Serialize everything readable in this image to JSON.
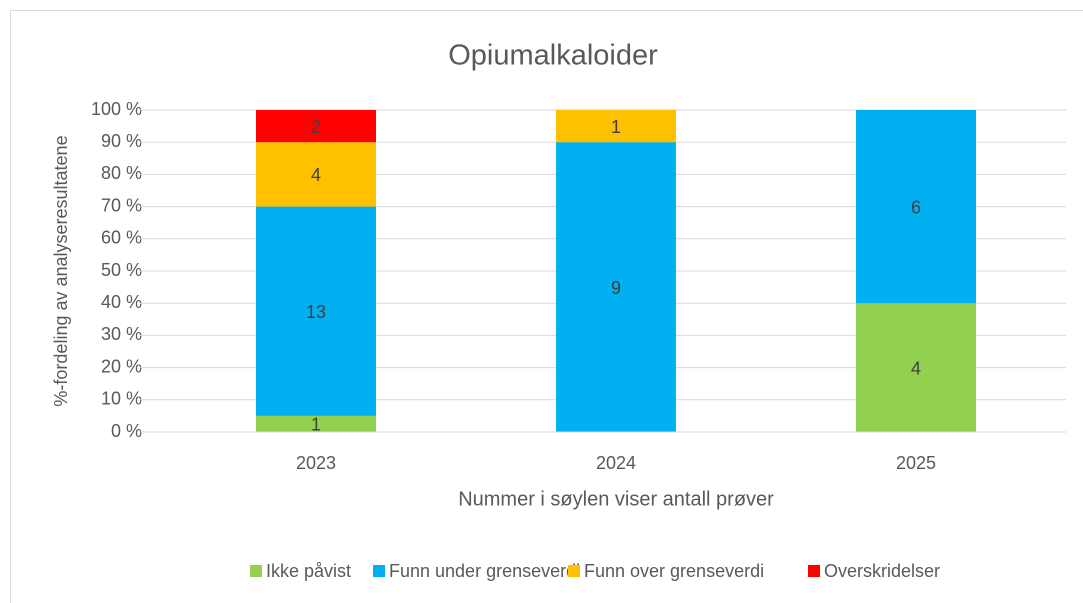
{
  "chart_data": {
    "type": "stacked_bar_percent",
    "title": "Opiumalkaloider",
    "ylabel": "%-fordeling av analyseresultatene",
    "xlabel": "Nummer i søylen viser antall prøver",
    "categories": [
      "2023",
      "2024",
      "2025"
    ],
    "series": [
      {
        "name": "Ikke påvist",
        "color": "#92d050",
        "values": [
          5,
          0,
          40
        ],
        "counts": [
          1,
          null,
          4
        ]
      },
      {
        "name": "Funn under grenseverdi",
        "color": "#00b0f0",
        "values": [
          65,
          90,
          60
        ],
        "counts": [
          13,
          9,
          6
        ]
      },
      {
        "name": "Funn over grenseverdi",
        "color": "#ffc000",
        "values": [
          20,
          10,
          0
        ],
        "counts": [
          4,
          1,
          null
        ]
      },
      {
        "name": "Overskridelser",
        "color": "#ff0000",
        "values": [
          10,
          0,
          0
        ],
        "counts": [
          2,
          null,
          null
        ]
      }
    ],
    "ylim": [
      0,
      100
    ],
    "yticks": [
      {
        "value": 0,
        "label": "0 %"
      },
      {
        "value": 10,
        "label": "10 %"
      },
      {
        "value": 20,
        "label": "20 %"
      },
      {
        "value": 30,
        "label": "30 %"
      },
      {
        "value": 40,
        "label": "40 %"
      },
      {
        "value": 50,
        "label": "50 %"
      },
      {
        "value": 60,
        "label": "60 %"
      },
      {
        "value": 70,
        "label": "70 %"
      },
      {
        "value": 80,
        "label": "80 %"
      },
      {
        "value": 90,
        "label": "90 %"
      },
      {
        "value": 100,
        "label": "100 %"
      }
    ],
    "grid": true,
    "legend": "bottom"
  }
}
